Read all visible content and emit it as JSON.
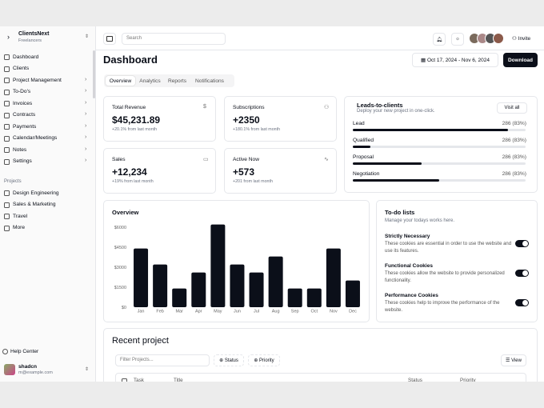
{
  "sidebar": {
    "team": {
      "name": "ClientsNext",
      "plan": "Freelancers"
    },
    "nav": [
      "Dashboard",
      "Clients",
      "Project Management",
      "To-Do's",
      "Invoices",
      "Contracts",
      "Payments",
      "Calendar/Meetings",
      "Notes",
      "Settings"
    ],
    "projects_heading": "Projects",
    "projects": [
      "Design Engineering",
      "Sales & Marketing",
      "Travel",
      "More"
    ],
    "help": "Help Center",
    "user": {
      "name": "shadcn",
      "email": "m@example.com"
    }
  },
  "topbar": {
    "search": "Search",
    "invite": "Invite"
  },
  "header": {
    "title": "Dashboard",
    "date_range": "Oct 17, 2024 - Nov 6, 2024",
    "download": "Download"
  },
  "tabs": [
    "Overview",
    "Analytics",
    "Reports",
    "Notifications"
  ],
  "stats": [
    {
      "label": "Total Revenue",
      "value": "$45,231.89",
      "change": "+20.1% from last month"
    },
    {
      "label": "Subscriptions",
      "value": "+2350",
      "change": "+180.1% from last month"
    },
    {
      "label": "Sales",
      "value": "+12,234",
      "change": "+19% from last month"
    },
    {
      "label": "Active Now",
      "value": "+573",
      "change": "+201 from last month"
    }
  ],
  "leads": {
    "title": "Leads-to-clients",
    "subtitle": "Deploy your new project in one-click.",
    "button": "Visit all",
    "items": [
      {
        "label": "Lead",
        "value": "286 (83%)",
        "progress": 90
      },
      {
        "label": "Qualified",
        "value": "286 (83%)",
        "progress": 10
      },
      {
        "label": "Proposal",
        "value": "286 (83%)",
        "progress": 40
      },
      {
        "label": "Negotiation",
        "value": "286 (83%)",
        "progress": 50
      }
    ]
  },
  "overview": {
    "title": "Overview",
    "type": "bar",
    "color": "#0b0f19",
    "categories": [
      "Jan",
      "Feb",
      "Mar",
      "Apr",
      "May",
      "Jun",
      "Jul",
      "Aug",
      "Sep",
      "Oct",
      "Nov",
      "Dec"
    ],
    "values": [
      4400,
      3200,
      1400,
      2600,
      6200,
      3200,
      2600,
      3800,
      1400,
      1400,
      4400,
      2000
    ],
    "ylim": [
      0,
      6300
    ],
    "yticks": [
      {
        "value": 0,
        "label": "$0"
      },
      {
        "value": 1500,
        "label": "$1500"
      },
      {
        "value": 3000,
        "label": "$3000"
      },
      {
        "value": 4500,
        "label": "$4500"
      },
      {
        "value": 6000,
        "label": "$6000"
      }
    ]
  },
  "todo": {
    "title": "To-do lists",
    "subtitle": "Manage your todays works here.",
    "items": [
      {
        "title": "Strictly Necessary",
        "description": "These cookies are essential in order to use the website and use its features.",
        "enabled": true
      },
      {
        "title": "Functional Cookies",
        "description": "These cookies allow the website to provide personalized functionality.",
        "enabled": true
      },
      {
        "title": "Performance Cookies",
        "description": "These cookies help to improve the performance of the website.",
        "enabled": true
      }
    ]
  },
  "recent": {
    "title": "Recent project",
    "filter": "Filter Projects...",
    "status": "Status",
    "priority": "Priority",
    "view": "View",
    "columns": [
      "Task",
      "Title",
      "Status",
      "Priority"
    ]
  }
}
